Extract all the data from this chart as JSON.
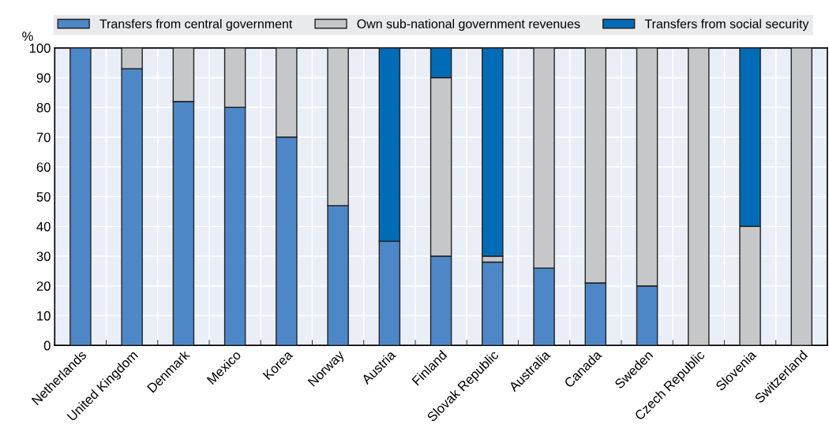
{
  "chart_data": {
    "type": "bar",
    "stacked": true,
    "ylabel": "%",
    "categories": [
      "Netherlands",
      "United Kingdom",
      "Denmark",
      "Mexico",
      "Korea",
      "Norway",
      "Austria",
      "Finland",
      "Slovak Republic",
      "Australia",
      "Canada",
      "Sweden",
      "Czech Republic",
      "Slovenia",
      "Switzerland"
    ],
    "series": [
      {
        "name": "Transfers from central government",
        "color": "#4e87c7",
        "values": [
          100,
          93,
          82,
          80,
          70,
          47,
          35,
          30,
          28,
          26,
          21,
          20,
          0,
          0,
          0
        ]
      },
      {
        "name": "Own sub-national government revenues",
        "color": "#c6c7c9",
        "values": [
          0,
          7,
          18,
          20,
          30,
          53,
          0,
          60,
          2,
          74,
          79,
          80,
          100,
          40,
          100
        ]
      },
      {
        "name": "Transfers from social security",
        "color": "#006bb6",
        "values": [
          0,
          0,
          0,
          0,
          0,
          0,
          65,
          10,
          70,
          0,
          0,
          0,
          0,
          60,
          0
        ]
      }
    ],
    "ylim": [
      0,
      100
    ],
    "yticks": [
      0,
      10,
      20,
      30,
      40,
      50,
      60,
      70,
      80,
      90,
      100
    ],
    "grid": true,
    "legend": "top"
  }
}
